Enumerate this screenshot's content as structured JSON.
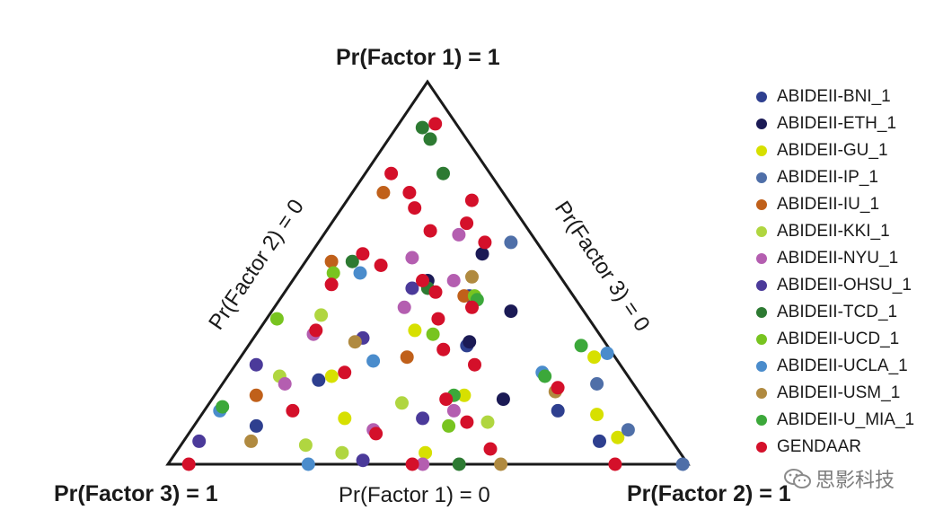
{
  "chart_data": {
    "type": "scatter",
    "subtype": "ternary",
    "vertex_labels": {
      "top": "Pr(Factor 1) = 1",
      "bottom_left": "Pr(Factor 3) = 1",
      "bottom_right": "Pr(Factor 2) = 1"
    },
    "edge_labels": {
      "left": "Pr(Factor 2) = 0",
      "right": "Pr(Factor 3) = 0",
      "bottom": "Pr(Factor 1) = 0"
    },
    "legend_position": "right",
    "series": [
      {
        "name": "ABIDEII-BNI_1",
        "color": "#2e3f8f",
        "points": [
          [
            0.14,
            0.68,
            0.18
          ],
          [
            0.31,
            0.42,
            0.27
          ],
          [
            0.06,
            0.8,
            0.14
          ],
          [
            0.44,
            0.36,
            0.2
          ],
          [
            0.22,
            0.18,
            0.6
          ],
          [
            0.1,
            0.12,
            0.78
          ]
        ]
      },
      {
        "name": "ABIDEII-ETH_1",
        "color": "#1b1a55",
        "points": [
          [
            0.4,
            0.46,
            0.14
          ],
          [
            0.32,
            0.42,
            0.26
          ],
          [
            0.17,
            0.56,
            0.27
          ],
          [
            0.55,
            0.33,
            0.12
          ],
          [
            0.48,
            0.26,
            0.26
          ]
        ]
      },
      {
        "name": "ABIDEII-GU_1",
        "color": "#d7e000",
        "points": [
          [
            0.23,
            0.2,
            0.57
          ],
          [
            0.13,
            0.76,
            0.11
          ],
          [
            0.07,
            0.83,
            0.1
          ],
          [
            0.28,
            0.68,
            0.04
          ],
          [
            0.12,
            0.28,
            0.6
          ],
          [
            0.35,
            0.3,
            0.35
          ],
          [
            0.03,
            0.48,
            0.49
          ],
          [
            0.18,
            0.48,
            0.34
          ]
        ]
      },
      {
        "name": "ABIDEII-IP_1",
        "color": "#4f6fa8",
        "points": [
          [
            0.0,
            0.99,
            0.01
          ],
          [
            0.58,
            0.37,
            0.05
          ],
          [
            0.21,
            0.72,
            0.07
          ],
          [
            0.09,
            0.84,
            0.07
          ]
        ]
      },
      {
        "name": "ABIDEII-IU_1",
        "color": "#c0601a",
        "points": [
          [
            0.71,
            0.06,
            0.23
          ],
          [
            0.53,
            0.05,
            0.42
          ],
          [
            0.18,
            0.08,
            0.74
          ],
          [
            0.44,
            0.35,
            0.21
          ],
          [
            0.28,
            0.32,
            0.4
          ]
        ]
      },
      {
        "name": "ABIDEII-KKI_1",
        "color": "#b0d640",
        "points": [
          [
            0.23,
            0.1,
            0.67
          ],
          [
            0.05,
            0.24,
            0.71
          ],
          [
            0.11,
            0.56,
            0.33
          ],
          [
            0.39,
            0.1,
            0.51
          ],
          [
            0.16,
            0.37,
            0.47
          ],
          [
            0.03,
            0.32,
            0.65
          ]
        ]
      },
      {
        "name": "ABIDEII-NYU_1",
        "color": "#b45eb0",
        "points": [
          [
            0.6,
            0.26,
            0.14
          ],
          [
            0.54,
            0.2,
            0.26
          ],
          [
            0.48,
            0.31,
            0.21
          ],
          [
            0.41,
            0.25,
            0.34
          ],
          [
            0.21,
            0.12,
            0.67
          ],
          [
            0.14,
            0.48,
            0.38
          ],
          [
            0.09,
            0.35,
            0.56
          ],
          [
            0.0,
            0.49,
            0.51
          ],
          [
            0.34,
            0.11,
            0.55
          ]
        ]
      },
      {
        "name": "ABIDEII-OHSU_1",
        "color": "#4b3a9a",
        "points": [
          [
            0.33,
            0.21,
            0.46
          ],
          [
            0.12,
            0.43,
            0.45
          ],
          [
            0.06,
            0.03,
            0.91
          ],
          [
            0.26,
            0.04,
            0.7
          ],
          [
            0.46,
            0.24,
            0.3
          ],
          [
            0.01,
            0.37,
            0.62
          ]
        ]
      },
      {
        "name": "ABIDEII-TCD_1",
        "color": "#2d7a32",
        "points": [
          [
            0.88,
            0.05,
            0.07
          ],
          [
            0.85,
            0.08,
            0.07
          ],
          [
            0.76,
            0.15,
            0.09
          ],
          [
            0.53,
            0.09,
            0.38
          ],
          [
            0.46,
            0.27,
            0.27
          ],
          [
            0.0,
            0.56,
            0.44
          ]
        ]
      },
      {
        "name": "ABIDEII-UCD_1",
        "color": "#78c420",
        "points": [
          [
            0.51,
            0.07,
            0.44
          ],
          [
            0.44,
            0.37,
            0.19
          ],
          [
            0.34,
            0.34,
            0.32
          ],
          [
            0.38,
            0.02,
            0.6
          ],
          [
            0.1,
            0.49,
            0.41
          ]
        ]
      },
      {
        "name": "ABIDEII-UCLA_1",
        "color": "#4a8ccc",
        "points": [
          [
            0.5,
            0.12,
            0.38
          ],
          [
            0.29,
            0.7,
            0.01
          ],
          [
            0.27,
            0.26,
            0.47
          ],
          [
            0.24,
            0.6,
            0.16
          ],
          [
            0.14,
            0.03,
            0.83
          ],
          [
            0.0,
            0.27,
            0.73
          ]
        ]
      },
      {
        "name": "ABIDEII-USM_1",
        "color": "#b08a40",
        "points": [
          [
            0.49,
            0.34,
            0.17
          ],
          [
            0.32,
            0.2,
            0.48
          ],
          [
            0.19,
            0.65,
            0.16
          ],
          [
            0.0,
            0.64,
            0.36
          ],
          [
            0.06,
            0.13,
            0.81
          ]
        ]
      },
      {
        "name": "ABIDEII-U_MIA_1",
        "color": "#3ca83a",
        "points": [
          [
            0.15,
            0.03,
            0.82
          ],
          [
            0.43,
            0.38,
            0.19
          ],
          [
            0.23,
            0.61,
            0.16
          ],
          [
            0.31,
            0.64,
            0.05
          ],
          [
            0.18,
            0.46,
            0.36
          ]
        ]
      },
      {
        "name": "GENDAAR",
        "color": "#d4102a",
        "points": [
          [
            0.89,
            0.07,
            0.04
          ],
          [
            0.76,
            0.05,
            0.19
          ],
          [
            0.71,
            0.11,
            0.18
          ],
          [
            0.69,
            0.24,
            0.07
          ],
          [
            0.67,
            0.14,
            0.19
          ],
          [
            0.63,
            0.26,
            0.11
          ],
          [
            0.61,
            0.2,
            0.19
          ],
          [
            0.58,
            0.32,
            0.1
          ],
          [
            0.55,
            0.1,
            0.35
          ],
          [
            0.52,
            0.15,
            0.33
          ],
          [
            0.48,
            0.25,
            0.27
          ],
          [
            0.45,
            0.29,
            0.26
          ],
          [
            0.41,
            0.38,
            0.21
          ],
          [
            0.38,
            0.33,
            0.29
          ],
          [
            0.35,
            0.11,
            0.54
          ],
          [
            0.3,
            0.38,
            0.32
          ],
          [
            0.26,
            0.46,
            0.28
          ],
          [
            0.24,
            0.22,
            0.54
          ],
          [
            0.2,
            0.65,
            0.15
          ],
          [
            0.17,
            0.45,
            0.38
          ],
          [
            0.14,
            0.17,
            0.69
          ],
          [
            0.11,
            0.52,
            0.37
          ],
          [
            0.08,
            0.36,
            0.56
          ],
          [
            0.04,
            0.6,
            0.36
          ],
          [
            0.0,
            0.04,
            0.96
          ],
          [
            0.0,
            0.47,
            0.53
          ],
          [
            0.0,
            0.86,
            0.14
          ],
          [
            0.47,
            0.08,
            0.45
          ]
        ]
      }
    ]
  },
  "watermark": {
    "text": "思影科技",
    "icon": "wechat-icon"
  }
}
